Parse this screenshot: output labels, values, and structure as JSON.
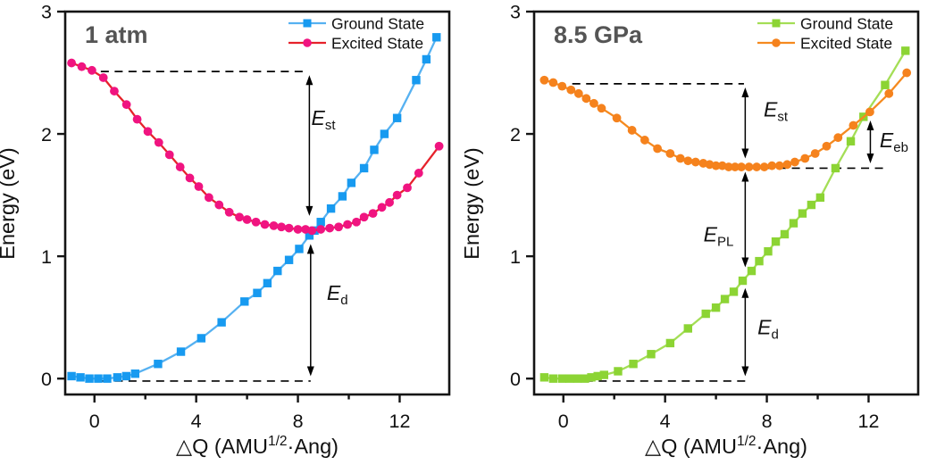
{
  "chart_data": {
    "type": "line",
    "description": "Configuration coordinate diagrams of ground and excited state energies vs lattice distortion at two pressures",
    "panels": [
      {
        "id": "left",
        "tag": "1 atm",
        "ylabel": "Energy (eV)",
        "xlabel_parts": [
          "△Q (AMU",
          "1/2",
          "·Ang)"
        ],
        "xlim": [
          -1.15,
          13.95
        ],
        "ylim": [
          -0.13,
          3.0
        ],
        "xticks": [
          0,
          4,
          8,
          12
        ],
        "xticks_minor": [
          2,
          6,
          10
        ],
        "yticks": [
          0,
          1,
          2,
          3
        ],
        "series": [
          {
            "key": "ground",
            "name": "Ground State",
            "marker": "square",
            "line_color": "#56b1f1",
            "marker_color": "#179af0",
            "points": [
              [
                -0.9,
                0.02
              ],
              [
                -0.55,
                0.01
              ],
              [
                -0.2,
                0.0
              ],
              [
                0.15,
                0.0
              ],
              [
                0.5,
                0.0
              ],
              [
                0.9,
                0.01
              ],
              [
                1.25,
                0.02
              ],
              [
                1.6,
                0.04
              ],
              [
                2.5,
                0.12
              ],
              [
                3.4,
                0.22
              ],
              [
                4.2,
                0.33
              ],
              [
                5.0,
                0.46
              ],
              [
                5.9,
                0.63
              ],
              [
                6.4,
                0.7
              ],
              [
                6.8,
                0.78
              ],
              [
                7.2,
                0.88
              ],
              [
                7.65,
                0.97
              ],
              [
                8.05,
                1.06
              ],
              [
                8.45,
                1.17
              ],
              [
                8.65,
                1.21
              ],
              [
                8.9,
                1.28
              ],
              [
                9.3,
                1.39
              ],
              [
                9.75,
                1.49
              ],
              [
                10.1,
                1.6
              ],
              [
                10.6,
                1.72
              ],
              [
                11.0,
                1.87
              ],
              [
                11.4,
                2.0
              ],
              [
                11.9,
                2.13
              ],
              [
                12.65,
                2.44
              ],
              [
                13.05,
                2.61
              ],
              [
                13.45,
                2.79
              ]
            ]
          },
          {
            "key": "excited",
            "name": "Excited State",
            "marker": "circle",
            "line_color": "#e6222b",
            "marker_color": "#f01480",
            "points": [
              [
                -0.9,
                2.58
              ],
              [
                -0.5,
                2.55
              ],
              [
                -0.1,
                2.52
              ],
              [
                0.35,
                2.46
              ],
              [
                0.78,
                2.35
              ],
              [
                1.26,
                2.24
              ],
              [
                1.68,
                2.12
              ],
              [
                2.1,
                2.02
              ],
              [
                2.53,
                1.93
              ],
              [
                2.95,
                1.83
              ],
              [
                3.37,
                1.73
              ],
              [
                3.75,
                1.64
              ],
              [
                4.1,
                1.57
              ],
              [
                4.5,
                1.48
              ],
              [
                4.9,
                1.42
              ],
              [
                5.3,
                1.36
              ],
              [
                5.7,
                1.32
              ],
              [
                6.0,
                1.3
              ],
              [
                6.35,
                1.28
              ],
              [
                6.7,
                1.26
              ],
              [
                7.05,
                1.25
              ],
              [
                7.35,
                1.24
              ],
              [
                7.65,
                1.23
              ],
              [
                8.0,
                1.22
              ],
              [
                8.3,
                1.22
              ],
              [
                8.55,
                1.21
              ],
              [
                8.9,
                1.22
              ],
              [
                9.25,
                1.23
              ],
              [
                9.6,
                1.24
              ],
              [
                9.95,
                1.26
              ],
              [
                10.3,
                1.28
              ],
              [
                10.6,
                1.32
              ],
              [
                10.95,
                1.35
              ],
              [
                11.3,
                1.4
              ],
              [
                11.6,
                1.44
              ],
              [
                11.9,
                1.5
              ],
              [
                12.3,
                1.56
              ],
              [
                12.75,
                1.68
              ],
              [
                13.55,
                1.9
              ]
            ]
          }
        ],
        "dashed_lines": [
          {
            "y": 2.51,
            "x1": 0.25,
            "x2": 8.4
          },
          {
            "y": -0.02,
            "x1": 0.25,
            "x2": 8.5
          }
        ],
        "arrows": [
          {
            "x": 8.45,
            "y_top": 2.48,
            "y_bottom": 1.33
          },
          {
            "x": 8.5,
            "y_top": 1.1,
            "y_bottom": 0.02
          }
        ],
        "energy_labels": [
          {
            "main": "E",
            "sub": "st",
            "x": 9.0,
            "y": 2.13
          },
          {
            "main": "E",
            "sub": "d",
            "x": 9.55,
            "y": 0.7
          }
        ]
      },
      {
        "id": "right",
        "tag": "8.5 GPa",
        "ylabel": "Energy (eV)",
        "xlabel_parts": [
          "△Q (AMU",
          "1/2",
          "·Ang)"
        ],
        "xlim": [
          -1.15,
          13.95
        ],
        "ylim": [
          -0.13,
          3.0
        ],
        "xticks": [
          0,
          4,
          8,
          12
        ],
        "xticks_minor": [
          2,
          6,
          10
        ],
        "yticks": [
          0,
          1,
          2,
          3
        ],
        "series": [
          {
            "key": "ground",
            "name": "Ground State",
            "marker": "square",
            "line_color": "#a4de56",
            "marker_color": "#8cd434",
            "points": [
              [
                -0.75,
                0.01
              ],
              [
                -0.4,
                0.0
              ],
              [
                -0.05,
                0.0
              ],
              [
                0.25,
                0.0
              ],
              [
                0.55,
                0.0
              ],
              [
                0.85,
                0.0
              ],
              [
                1.1,
                0.01
              ],
              [
                1.35,
                0.02
              ],
              [
                1.6,
                0.03
              ],
              [
                2.15,
                0.06
              ],
              [
                2.75,
                0.12
              ],
              [
                3.45,
                0.2
              ],
              [
                4.2,
                0.29
              ],
              [
                4.9,
                0.41
              ],
              [
                5.6,
                0.53
              ],
              [
                6.0,
                0.58
              ],
              [
                6.35,
                0.65
              ],
              [
                6.7,
                0.71
              ],
              [
                7.05,
                0.8
              ],
              [
                7.4,
                0.88
              ],
              [
                7.7,
                0.96
              ],
              [
                8.05,
                1.04
              ],
              [
                8.35,
                1.12
              ],
              [
                8.7,
                1.18
              ],
              [
                9.05,
                1.27
              ],
              [
                9.4,
                1.35
              ],
              [
                9.75,
                1.42
              ],
              [
                10.1,
                1.48
              ],
              [
                10.7,
                1.72
              ],
              [
                11.3,
                1.94
              ],
              [
                11.8,
                2.14
              ],
              [
                12.65,
                2.4
              ],
              [
                13.45,
                2.68
              ]
            ]
          },
          {
            "key": "excited",
            "name": "Excited State",
            "marker": "circle",
            "line_color": "#f58a1f",
            "marker_color": "#f5821d",
            "points": [
              [
                -0.75,
                2.44
              ],
              [
                -0.4,
                2.42
              ],
              [
                -0.05,
                2.39
              ],
              [
                0.3,
                2.36
              ],
              [
                0.6,
                2.33
              ],
              [
                0.9,
                2.29
              ],
              [
                1.2,
                2.25
              ],
              [
                1.5,
                2.21
              ],
              [
                2.1,
                2.13
              ],
              [
                2.7,
                2.03
              ],
              [
                3.2,
                1.95
              ],
              [
                3.7,
                1.88
              ],
              [
                4.2,
                1.84
              ],
              [
                4.6,
                1.8
              ],
              [
                4.9,
                1.78
              ],
              [
                5.2,
                1.77
              ],
              [
                5.5,
                1.76
              ],
              [
                5.75,
                1.75
              ],
              [
                6.0,
                1.74
              ],
              [
                6.25,
                1.74
              ],
              [
                6.5,
                1.73
              ],
              [
                6.75,
                1.73
              ],
              [
                7.0,
                1.73
              ],
              [
                7.3,
                1.73
              ],
              [
                7.6,
                1.73
              ],
              [
                7.9,
                1.73
              ],
              [
                8.2,
                1.74
              ],
              [
                8.5,
                1.74
              ],
              [
                8.8,
                1.75
              ],
              [
                9.1,
                1.77
              ],
              [
                9.5,
                1.8
              ],
              [
                9.9,
                1.84
              ],
              [
                10.35,
                1.9
              ],
              [
                10.8,
                1.97
              ],
              [
                11.4,
                2.07
              ],
              [
                12.05,
                2.18
              ],
              [
                12.8,
                2.33
              ],
              [
                13.5,
                2.5
              ]
            ]
          }
        ],
        "dashed_lines": [
          {
            "y": 2.41,
            "x1": 0.35,
            "x2": 7.1
          },
          {
            "y": 1.72,
            "x1": 7.35,
            "x2": 12.7
          },
          {
            "y": -0.02,
            "x1": 0.3,
            "x2": 7.3
          }
        ],
        "arrows": [
          {
            "x": 7.15,
            "y_top": 2.38,
            "y_bottom": 1.8
          },
          {
            "x": 7.15,
            "y_top": 1.69,
            "y_bottom": 0.91
          },
          {
            "x": 7.15,
            "y_top": 0.74,
            "y_bottom": 0.02
          },
          {
            "x": 12.07,
            "y_top": 2.11,
            "y_bottom": 1.76
          }
        ],
        "energy_labels": [
          {
            "main": "E",
            "sub": "st",
            "x": 8.35,
            "y": 2.2
          },
          {
            "main": "E",
            "sub": "PL",
            "x": 6.1,
            "y": 1.18
          },
          {
            "main": "E",
            "sub": "d",
            "x": 8.05,
            "y": 0.42
          },
          {
            "main": "E",
            "sub": "eb",
            "x": 13.0,
            "y": 1.95
          }
        ]
      }
    ]
  }
}
